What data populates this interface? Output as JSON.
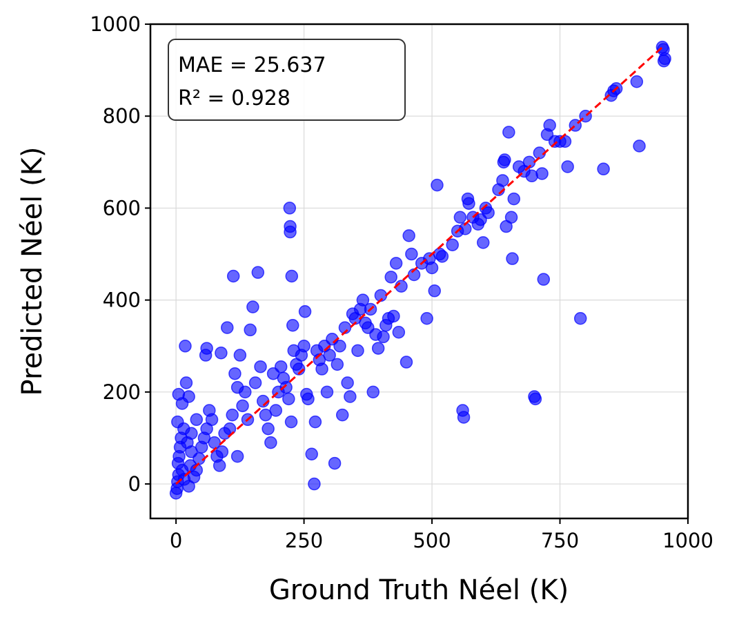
{
  "colors": {
    "points": "#0000ff",
    "identity_line": "#ff0000",
    "grid": "#d9d9d9",
    "axes": "#000000"
  },
  "chart_data": {
    "type": "scatter",
    "title": "",
    "xlabel": "Ground Truth Néel (K)",
    "ylabel": "Predicted Néel (K)",
    "xlim": [
      -50,
      1000
    ],
    "ylim": [
      -75,
      1000
    ],
    "xticks": [
      0,
      250,
      500,
      750,
      1000
    ],
    "yticks": [
      0,
      200,
      400,
      600,
      800,
      1000
    ],
    "grid": true,
    "annotation": [
      "MAE = 25.637",
      "R² = 0.928"
    ],
    "annotation_position": "top-left",
    "reference_line": {
      "style": "dashed",
      "from": [
        0,
        0
      ],
      "to": [
        955,
        955
      ]
    },
    "series": [
      {
        "points": [
          [
            0,
            -20
          ],
          [
            2,
            -10
          ],
          [
            3,
            5
          ],
          [
            5,
            20
          ],
          [
            4,
            45
          ],
          [
            6,
            60
          ],
          [
            8,
            80
          ],
          [
            10,
            100
          ],
          [
            3,
            135
          ],
          [
            5,
            195
          ],
          [
            12,
            175
          ],
          [
            18,
            300
          ],
          [
            20,
            220
          ],
          [
            25,
            190
          ],
          [
            15,
            120
          ],
          [
            22,
            90
          ],
          [
            30,
            70
          ],
          [
            28,
            40
          ],
          [
            12,
            30
          ],
          [
            16,
            10
          ],
          [
            25,
            -5
          ],
          [
            35,
            15
          ],
          [
            40,
            30
          ],
          [
            45,
            55
          ],
          [
            50,
            80
          ],
          [
            55,
            100
          ],
          [
            60,
            120
          ],
          [
            40,
            140
          ],
          [
            30,
            110
          ],
          [
            65,
            160
          ],
          [
            58,
            280
          ],
          [
            60,
            295
          ],
          [
            70,
            140
          ],
          [
            75,
            90
          ],
          [
            80,
            60
          ],
          [
            85,
            40
          ],
          [
            90,
            70
          ],
          [
            95,
            110
          ],
          [
            88,
            285
          ],
          [
            100,
            340
          ],
          [
            105,
            120
          ],
          [
            110,
            150
          ],
          [
            115,
            240
          ],
          [
            120,
            210
          ],
          [
            125,
            280
          ],
          [
            112,
            452
          ],
          [
            120,
            60
          ],
          [
            130,
            170
          ],
          [
            135,
            200
          ],
          [
            140,
            140
          ],
          [
            145,
            335
          ],
          [
            150,
            385
          ],
          [
            155,
            220
          ],
          [
            160,
            460
          ],
          [
            165,
            255
          ],
          [
            170,
            180
          ],
          [
            175,
            150
          ],
          [
            180,
            120
          ],
          [
            185,
            90
          ],
          [
            190,
            240
          ],
          [
            195,
            160
          ],
          [
            200,
            200
          ],
          [
            205,
            255
          ],
          [
            210,
            230
          ],
          [
            215,
            210
          ],
          [
            220,
            185
          ],
          [
            225,
            135
          ],
          [
            222,
            600
          ],
          [
            223,
            560
          ],
          [
            223,
            548
          ],
          [
            226,
            452
          ],
          [
            228,
            345
          ],
          [
            230,
            290
          ],
          [
            235,
            260
          ],
          [
            240,
            250
          ],
          [
            245,
            280
          ],
          [
            250,
            300
          ],
          [
            252,
            375
          ],
          [
            255,
            195
          ],
          [
            258,
            185
          ],
          [
            265,
            65
          ],
          [
            270,
            0
          ],
          [
            272,
            135
          ],
          [
            275,
            290
          ],
          [
            280,
            270
          ],
          [
            285,
            250
          ],
          [
            290,
            300
          ],
          [
            295,
            200
          ],
          [
            300,
            280
          ],
          [
            305,
            315
          ],
          [
            310,
            45
          ],
          [
            315,
            260
          ],
          [
            320,
            300
          ],
          [
            325,
            150
          ],
          [
            330,
            340
          ],
          [
            335,
            220
          ],
          [
            340,
            190
          ],
          [
            345,
            370
          ],
          [
            350,
            360
          ],
          [
            355,
            290
          ],
          [
            360,
            380
          ],
          [
            365,
            400
          ],
          [
            370,
            350
          ],
          [
            375,
            340
          ],
          [
            380,
            380
          ],
          [
            385,
            200
          ],
          [
            390,
            325
          ],
          [
            395,
            295
          ],
          [
            400,
            410
          ],
          [
            405,
            320
          ],
          [
            410,
            345
          ],
          [
            415,
            360
          ],
          [
            420,
            450
          ],
          [
            425,
            365
          ],
          [
            430,
            480
          ],
          [
            435,
            330
          ],
          [
            440,
            430
          ],
          [
            450,
            265
          ],
          [
            455,
            540
          ],
          [
            460,
            500
          ],
          [
            465,
            455
          ],
          [
            480,
            480
          ],
          [
            490,
            360
          ],
          [
            495,
            490
          ],
          [
            500,
            470
          ],
          [
            505,
            420
          ],
          [
            510,
            650
          ],
          [
            515,
            500
          ],
          [
            520,
            495
          ],
          [
            540,
            520
          ],
          [
            550,
            550
          ],
          [
            555,
            580
          ],
          [
            560,
            160
          ],
          [
            562,
            145
          ],
          [
            565,
            555
          ],
          [
            570,
            620
          ],
          [
            572,
            610
          ],
          [
            580,
            580
          ],
          [
            590,
            565
          ],
          [
            595,
            575
          ],
          [
            600,
            525
          ],
          [
            605,
            600
          ],
          [
            610,
            590
          ],
          [
            630,
            640
          ],
          [
            638,
            660
          ],
          [
            640,
            700
          ],
          [
            642,
            705
          ],
          [
            645,
            560
          ],
          [
            650,
            765
          ],
          [
            655,
            580
          ],
          [
            657,
            490
          ],
          [
            660,
            620
          ],
          [
            670,
            690
          ],
          [
            680,
            680
          ],
          [
            690,
            700
          ],
          [
            695,
            670
          ],
          [
            700,
            190
          ],
          [
            702,
            185
          ],
          [
            710,
            720
          ],
          [
            715,
            675
          ],
          [
            718,
            445
          ],
          [
            725,
            760
          ],
          [
            730,
            780
          ],
          [
            740,
            745
          ],
          [
            750,
            745
          ],
          [
            760,
            745
          ],
          [
            765,
            690
          ],
          [
            780,
            780
          ],
          [
            790,
            360
          ],
          [
            800,
            800
          ],
          [
            835,
            685
          ],
          [
            850,
            845
          ],
          [
            855,
            855
          ],
          [
            860,
            860
          ],
          [
            900,
            875
          ],
          [
            905,
            735
          ],
          [
            950,
            950
          ],
          [
            952,
            945
          ],
          [
            955,
            925
          ],
          [
            953,
            920
          ]
        ]
      }
    ]
  }
}
